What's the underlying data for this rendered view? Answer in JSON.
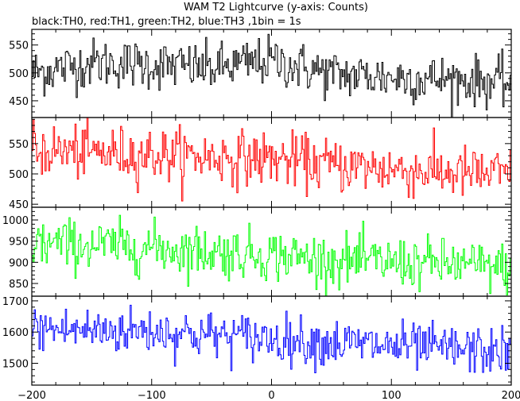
{
  "title": "WAM T2 Lightcurve (y-axis: Counts)",
  "subtitle": "black:TH0, red:TH1, green:TH2, blue:TH3 ,1bin = 1s",
  "chart_data": [
    {
      "type": "line",
      "series": [
        {
          "name": "TH0",
          "color": "#000000"
        }
      ],
      "xlim": [
        -200,
        200
      ],
      "ylim": [
        420,
        578
      ],
      "yticks": [
        450,
        500,
        550
      ],
      "xticks": [
        -200,
        -100,
        0,
        100,
        200
      ],
      "trend": {
        "x": [
          -200,
          -150,
          -100,
          -50,
          0,
          50,
          100,
          150,
          200
        ],
        "y": [
          500,
          518,
          515,
          508,
          522,
          498,
          492,
          488,
          482
        ]
      },
      "noise_sd": 22
    },
    {
      "type": "line",
      "series": [
        {
          "name": "TH1",
          "color": "#ff0000"
        }
      ],
      "xlim": [
        -200,
        200
      ],
      "ylim": [
        445,
        593
      ],
      "yticks": [
        450,
        500,
        550
      ],
      "xticks": [
        -200,
        -100,
        0,
        100,
        200
      ],
      "trend": {
        "x": [
          -200,
          -150,
          -100,
          -50,
          0,
          50,
          100,
          150,
          200
        ],
        "y": [
          540,
          535,
          532,
          528,
          525,
          515,
          508,
          502,
          498
        ]
      },
      "noise_sd": 22
    },
    {
      "type": "line",
      "series": [
        {
          "name": "TH2",
          "color": "#00ff00"
        }
      ],
      "xlim": [
        -200,
        200
      ],
      "ylim": [
        820,
        1030
      ],
      "yticks": [
        850,
        900,
        950,
        1000
      ],
      "xticks": [
        -200,
        -100,
        0,
        100,
        200
      ],
      "trend": {
        "x": [
          -200,
          -150,
          -100,
          -50,
          0,
          50,
          100,
          150,
          200
        ],
        "y": [
          945,
          940,
          935,
          925,
          918,
          905,
          900,
          895,
          885
        ]
      },
      "noise_sd": 30
    },
    {
      "type": "line",
      "series": [
        {
          "name": "TH3",
          "color": "#0000ff"
        }
      ],
      "xlim": [
        -200,
        200
      ],
      "ylim": [
        1430,
        1715
      ],
      "yticks": [
        1500,
        1600,
        1700
      ],
      "xticks": [
        -200,
        -100,
        0,
        100,
        200
      ],
      "trend": {
        "x": [
          -200,
          -150,
          -100,
          -50,
          0,
          50,
          100,
          150,
          200
        ],
        "y": [
          1610,
          1605,
          1605,
          1590,
          1580,
          1565,
          1555,
          1545,
          1535
        ]
      },
      "noise_sd": 38
    }
  ]
}
